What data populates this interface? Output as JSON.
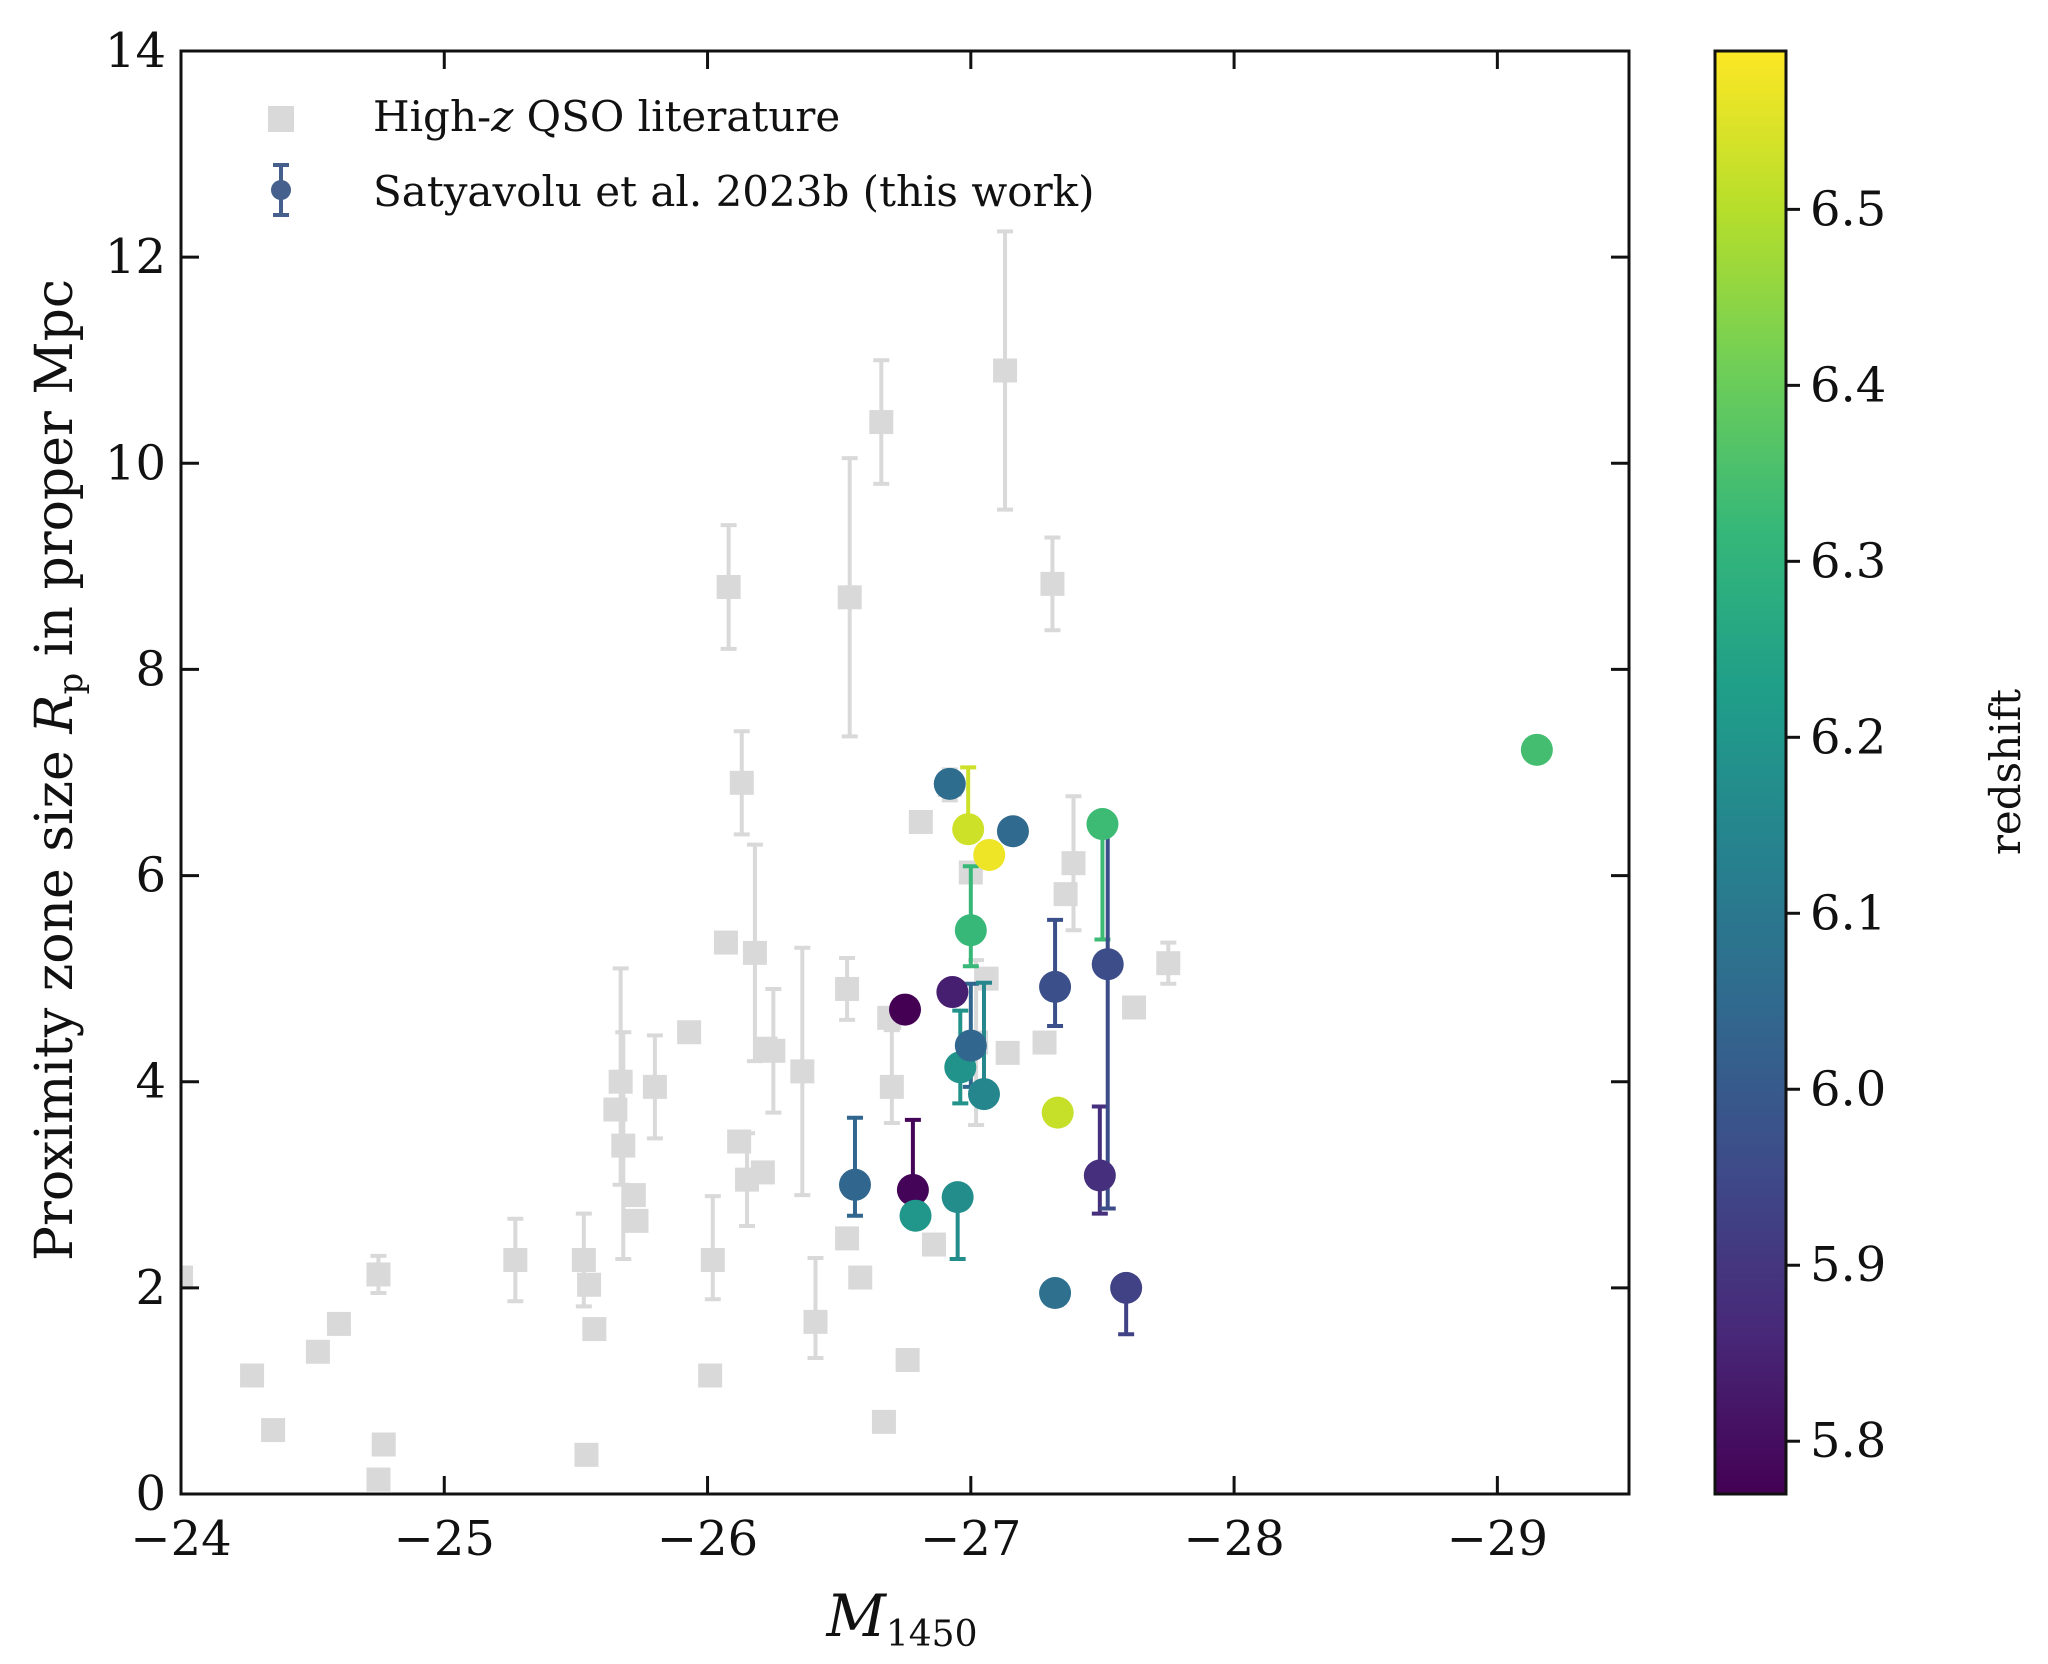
{
  "chart_data": {
    "type": "scatter",
    "xlabel": "M",
    "xlabel_sub": "1450",
    "ylabel_prefix": "Proximity zone size",
    "ylabel_symbol": "R",
    "ylabel_symbol_sub": "p",
    "ylabel_suffix": "in proper Mpc",
    "xlim": [
      -24,
      -29.5
    ],
    "ylim": [
      0,
      14
    ],
    "x_ticks": [
      {
        "value": -24,
        "label": "−24"
      },
      {
        "value": -25,
        "label": "−25"
      },
      {
        "value": -26,
        "label": "−26"
      },
      {
        "value": -27,
        "label": "−27"
      },
      {
        "value": -28,
        "label": "−28"
      },
      {
        "value": -29,
        "label": "−29"
      }
    ],
    "y_ticks": [
      {
        "value": 0,
        "label": "0"
      },
      {
        "value": 2,
        "label": "2"
      },
      {
        "value": 4,
        "label": "4"
      },
      {
        "value": 6,
        "label": "6"
      },
      {
        "value": 8,
        "label": "8"
      },
      {
        "value": 10,
        "label": "10"
      },
      {
        "value": 12,
        "label": "12"
      },
      {
        "value": 14,
        "label": "14"
      }
    ],
    "legend": {
      "placement": "top-left",
      "entries": [
        {
          "label_pre": "High-",
          "label_italic": "z",
          "label_post": " QSO literature",
          "marker": "square",
          "color": "#d9d9d9"
        },
        {
          "label_pre": "Satyavolu et al. 2023b (this work)",
          "label_italic": "",
          "label_post": "",
          "marker": "circle-errorbar",
          "color": "#46608e"
        }
      ]
    },
    "colorbar": {
      "label": "redshift",
      "range": [
        5.77,
        6.59
      ],
      "colormap": "viridis",
      "colormap_stops": [
        "#440154",
        "#482878",
        "#3e4a89",
        "#31688e",
        "#26828e",
        "#1f9e89",
        "#35b779",
        "#6ece58",
        "#b5de2b",
        "#fde725"
      ],
      "ticks": [
        {
          "value": 5.8,
          "label": "5.8"
        },
        {
          "value": 5.9,
          "label": "5.9"
        },
        {
          "value": 6.0,
          "label": "6.0"
        },
        {
          "value": 6.1,
          "label": "6.1"
        },
        {
          "value": 6.2,
          "label": "6.2"
        },
        {
          "value": 6.3,
          "label": "6.3"
        },
        {
          "value": 6.4,
          "label": "6.4"
        },
        {
          "value": 6.5,
          "label": "6.5"
        }
      ]
    },
    "series": [
      {
        "name": "High-z QSO literature",
        "marker": "square",
        "color": "#d9d9d9",
        "points": [
          {
            "x": -24.0,
            "y": 2.1
          },
          {
            "x": -24.27,
            "y": 1.15
          },
          {
            "x": -24.35,
            "y": 0.62
          },
          {
            "x": -24.52,
            "y": 1.38
          },
          {
            "x": -24.6,
            "y": 1.65
          },
          {
            "x": -24.75,
            "y": 2.13,
            "err_lo": 0.18,
            "err_hi": 0.18
          },
          {
            "x": -24.77,
            "y": 0.48
          },
          {
            "x": -24.75,
            "y": 0.14
          },
          {
            "x": -25.27,
            "y": 2.27,
            "err_lo": 0.4,
            "err_hi": 0.4
          },
          {
            "x": -25.53,
            "y": 2.27,
            "err_lo": 0.45,
            "err_hi": 0.45
          },
          {
            "x": -25.55,
            "y": 2.03
          },
          {
            "x": -25.57,
            "y": 1.6
          },
          {
            "x": -25.54,
            "y": 0.38
          },
          {
            "x": -25.65,
            "y": 3.73
          },
          {
            "x": -25.67,
            "y": 4.0,
            "err_lo": 1.0,
            "err_hi": 1.1
          },
          {
            "x": -25.68,
            "y": 3.38,
            "err_lo": 1.1,
            "err_hi": 1.1
          },
          {
            "x": -25.72,
            "y": 2.9
          },
          {
            "x": -25.73,
            "y": 2.65
          },
          {
            "x": -25.8,
            "y": 3.95,
            "err_lo": 0.5,
            "err_hi": 0.5
          },
          {
            "x": -25.93,
            "y": 4.48
          },
          {
            "x": -26.02,
            "y": 2.27,
            "err_lo": 0.38,
            "err_hi": 0.62
          },
          {
            "x": -26.01,
            "y": 1.15
          },
          {
            "x": -26.07,
            "y": 5.35
          },
          {
            "x": -26.08,
            "y": 8.8,
            "err_lo": 0.6,
            "err_hi": 0.6
          },
          {
            "x": -26.13,
            "y": 6.9,
            "err_lo": 0.5,
            "err_hi": 0.5
          },
          {
            "x": -26.12,
            "y": 3.42
          },
          {
            "x": -26.15,
            "y": 3.05,
            "err_lo": 0.45,
            "err_hi": 0.45
          },
          {
            "x": -26.18,
            "y": 5.25,
            "err_lo": 1.05,
            "err_hi": 1.05
          },
          {
            "x": -26.21,
            "y": 3.12
          },
          {
            "x": -26.22,
            "y": 4.32
          },
          {
            "x": -26.25,
            "y": 4.3,
            "err_lo": 0.6,
            "err_hi": 0.6
          },
          {
            "x": -26.36,
            "y": 4.1,
            "err_lo": 1.2,
            "err_hi": 1.2
          },
          {
            "x": -26.41,
            "y": 1.67,
            "err_lo": 0.35,
            "err_hi": 0.62
          },
          {
            "x": -26.53,
            "y": 4.9,
            "err_lo": 0.3,
            "err_hi": 0.3
          },
          {
            "x": -26.54,
            "y": 8.7,
            "err_lo": 1.35,
            "err_hi": 1.35
          },
          {
            "x": -26.53,
            "y": 2.48
          },
          {
            "x": -26.58,
            "y": 2.1
          },
          {
            "x": -26.66,
            "y": 10.4,
            "err_lo": 0.6,
            "err_hi": 0.6
          },
          {
            "x": -26.67,
            "y": 0.7
          },
          {
            "x": -26.69,
            "y": 4.62
          },
          {
            "x": -26.7,
            "y": 3.95,
            "err_lo": 0.35,
            "err_hi": 0.55
          },
          {
            "x": -26.76,
            "y": 1.3
          },
          {
            "x": -26.81,
            "y": 6.52
          },
          {
            "x": -26.86,
            "y": 2.42
          },
          {
            "x": -26.92,
            "y": 6.88,
            "err_lo": 0.15,
            "err_hi": 0.15
          },
          {
            "x": -27.0,
            "y": 6.03
          },
          {
            "x": -27.02,
            "y": 4.38,
            "err_lo": 0.8,
            "err_hi": 0.8
          },
          {
            "x": -27.06,
            "y": 5.0
          },
          {
            "x": -27.13,
            "y": 10.9,
            "err_lo": 1.35,
            "err_hi": 1.35
          },
          {
            "x": -27.14,
            "y": 4.28
          },
          {
            "x": -27.28,
            "y": 4.38
          },
          {
            "x": -27.31,
            "y": 8.83,
            "err_lo": 0.45,
            "err_hi": 0.45
          },
          {
            "x": -27.36,
            "y": 5.82
          },
          {
            "x": -27.39,
            "y": 6.12,
            "err_lo": 0.65,
            "err_hi": 0.65
          },
          {
            "x": -27.62,
            "y": 4.72
          },
          {
            "x": -27.75,
            "y": 5.15,
            "err_lo": 0.2,
            "err_hi": 0.2
          }
        ]
      },
      {
        "name": "Satyavolu et al. 2023b (this work)",
        "marker": "circle",
        "color_by": "redshift",
        "points": [
          {
            "x": -26.56,
            "y": 3.0,
            "z": 6.04,
            "err_lo": 0.3,
            "err_hi": 0.65
          },
          {
            "x": -26.75,
            "y": 4.7,
            "z": 5.77
          },
          {
            "x": -26.78,
            "y": 2.95,
            "z": 5.78,
            "err_lo": 0.3,
            "err_hi": 0.68
          },
          {
            "x": -26.79,
            "y": 2.7,
            "z": 6.2
          },
          {
            "x": -26.92,
            "y": 6.89,
            "z": 6.06
          },
          {
            "x": -26.93,
            "y": 4.87,
            "z": 5.84
          },
          {
            "x": -26.95,
            "y": 2.88,
            "z": 6.17,
            "err_lo": 0.6,
            "err_hi": 0
          },
          {
            "x": -26.96,
            "y": 4.14,
            "z": 6.19,
            "err_lo": 0.35,
            "err_hi": 0.55
          },
          {
            "x": -26.99,
            "y": 6.45,
            "z": 6.53,
            "err_lo": 0,
            "err_hi": 0.6
          },
          {
            "x": -27.0,
            "y": 5.47,
            "z": 6.32,
            "err_lo": 0.35,
            "err_hi": 0.62
          },
          {
            "x": -27.0,
            "y": 4.35,
            "z": 6.04,
            "err_lo": 0.4,
            "err_hi": 0.6
          },
          {
            "x": -27.05,
            "y": 3.88,
            "z": 6.15,
            "err_lo": 0,
            "err_hi": 1.08
          },
          {
            "x": -27.07,
            "y": 6.2,
            "z": 6.57
          },
          {
            "x": -27.16,
            "y": 6.43,
            "z": 6.05
          },
          {
            "x": -27.32,
            "y": 4.92,
            "z": 5.97,
            "err_lo": 0.38,
            "err_hi": 0.65
          },
          {
            "x": -27.32,
            "y": 1.95,
            "z": 6.07
          },
          {
            "x": -27.33,
            "y": 3.7,
            "z": 6.52
          },
          {
            "x": -27.49,
            "y": 3.09,
            "z": 5.88,
            "err_lo": 0.37,
            "err_hi": 0.67
          },
          {
            "x": -27.5,
            "y": 6.5,
            "z": 6.33,
            "err_lo": 1.12,
            "err_hi": 0
          },
          {
            "x": -27.52,
            "y": 5.14,
            "z": 5.96,
            "err_lo": 2.37,
            "err_hi": 1.4
          },
          {
            "x": -27.59,
            "y": 2.0,
            "z": 5.93,
            "err_lo": 0.45,
            "err_hi": 0
          },
          {
            "x": -29.15,
            "y": 7.22,
            "z": 6.34
          }
        ]
      }
    ]
  }
}
